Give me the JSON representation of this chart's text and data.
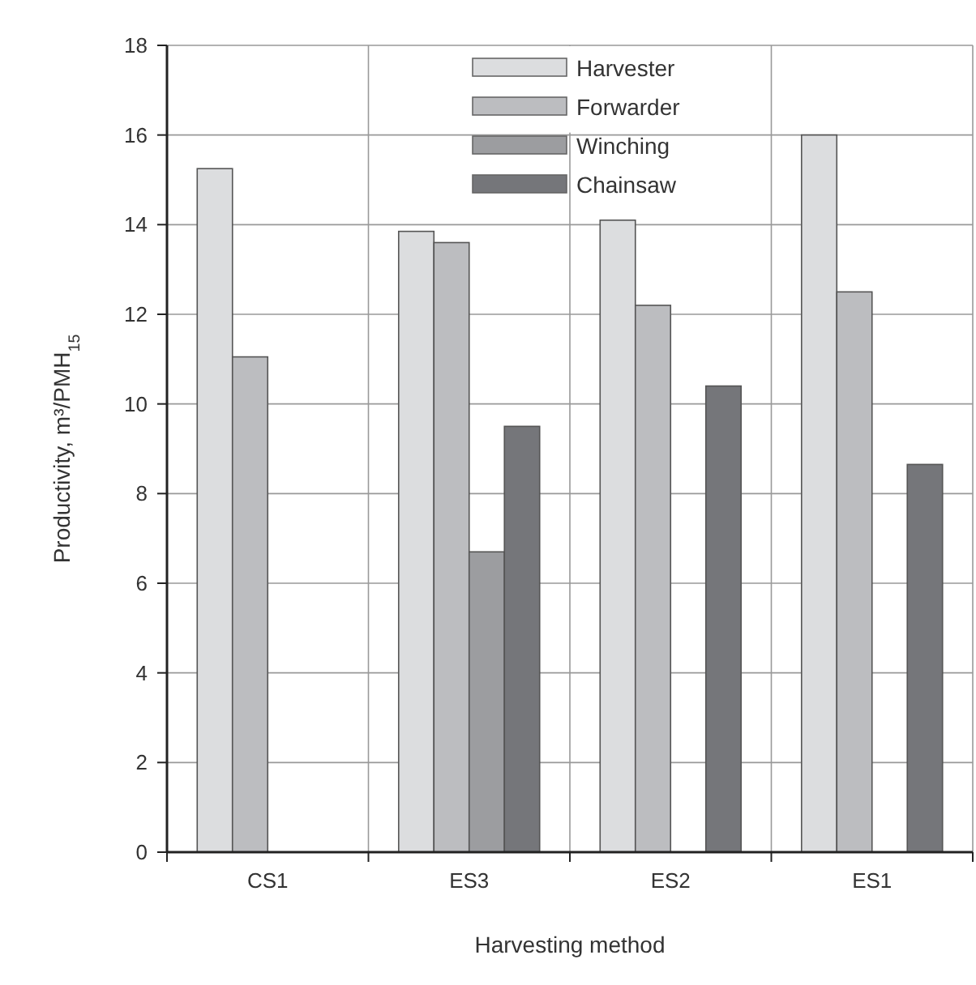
{
  "chart_data": {
    "type": "bar",
    "xlabel": "Harvesting method",
    "ylabel": "Productivity, m³/PMH$_{15}$",
    "categories": [
      "CS1",
      "ES3",
      "ES2",
      "ES1"
    ],
    "series": [
      {
        "name": "Harvester",
        "color": "#dcdddf",
        "values": [
          15.25,
          13.85,
          14.1,
          16.0
        ]
      },
      {
        "name": "Forwarder",
        "color": "#bcbdc0",
        "values": [
          11.05,
          13.6,
          12.2,
          12.5
        ]
      },
      {
        "name": "Winching",
        "color": "#9c9da0",
        "values": [
          null,
          6.7,
          null,
          null
        ]
      },
      {
        "name": "Chainsaw",
        "color": "#75767a",
        "values": [
          null,
          9.5,
          10.4,
          8.65
        ]
      }
    ],
    "ylim": [
      0,
      18
    ],
    "yticks": [
      0,
      2,
      4,
      6,
      8,
      10,
      12,
      14,
      16,
      18
    ],
    "grid": true,
    "legend": "top"
  }
}
